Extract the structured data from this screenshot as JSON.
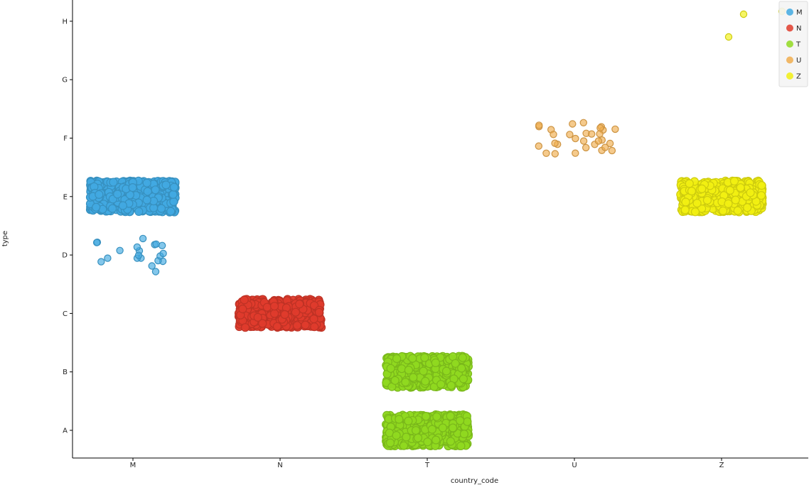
{
  "chart_data": {
    "type": "scatter",
    "subtype": "categorical jitter plot",
    "xlabel": "country_code",
    "ylabel": "type",
    "x_categories": [
      "M",
      "N",
      "T",
      "U",
      "Z"
    ],
    "y_categories": [
      "A",
      "B",
      "C",
      "D",
      "E",
      "F",
      "G",
      "H"
    ],
    "grid": false,
    "legend": {
      "position": "top-right",
      "title": ""
    },
    "series": [
      {
        "name": "M",
        "color": "#41a9e1",
        "groups": [
          {
            "x": "M",
            "y": "E",
            "count": "dense",
            "points": 600
          },
          {
            "x": "M",
            "y": "D",
            "count": 20,
            "points": 20
          }
        ]
      },
      {
        "name": "N",
        "color": "#df3b2c",
        "groups": [
          {
            "x": "N",
            "y": "C",
            "count": "dense",
            "points": 500
          }
        ]
      },
      {
        "name": "T",
        "color": "#90d920",
        "groups": [
          {
            "x": "T",
            "y": "B",
            "count": "dense",
            "points": 500
          },
          {
            "x": "T",
            "y": "A",
            "count": "dense",
            "points": 600
          }
        ]
      },
      {
        "name": "U",
        "color": "#f0ad4e",
        "groups": [
          {
            "x": "U",
            "y": "F",
            "count": 30,
            "points": 30
          }
        ]
      },
      {
        "name": "Z",
        "color": "#f1ef12",
        "groups": [
          {
            "x": "Z",
            "y": "E",
            "count": "dense",
            "points": 500
          },
          {
            "x": "Z",
            "y": "H",
            "count": 3,
            "points": 3
          }
        ]
      }
    ]
  }
}
